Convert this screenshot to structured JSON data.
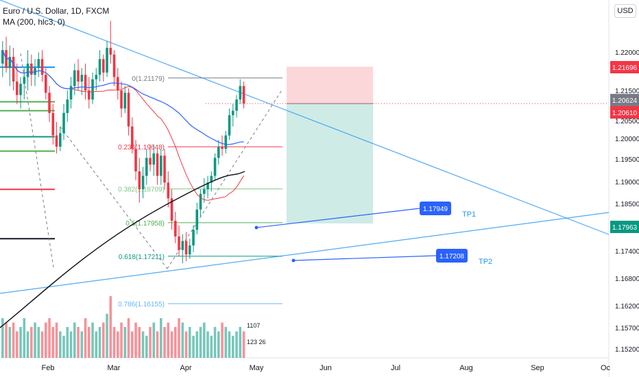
{
  "legend": {
    "symbol": "Euro / U.S. Dollar, 1D, FXCM",
    "indicator": "MA (200, hlc3, 0)"
  },
  "currency_button": "USD",
  "chart_data": {
    "type": "candlestick",
    "symbol": "EURUSD",
    "timeframe": "1D",
    "x_ticks": [
      "Feb",
      "Mar",
      "Apr",
      "May",
      "Jun",
      "Jul",
      "Aug",
      "Sep",
      "Oc"
    ],
    "y_ticks": [
      "1.22000",
      "1.21500",
      "1.20500",
      "1.20000",
      "1.19500",
      "1.19000",
      "1.18500",
      "1.17400",
      "1.16800",
      "1.16200",
      "1.15700",
      "1.15200"
    ],
    "ylim": [
      1.15,
      1.226
    ],
    "price_labels": [
      {
        "value": "1.21696",
        "color": "#f23645"
      },
      {
        "value": "1.20624",
        "color": "#787b86"
      },
      {
        "value": "1.20610",
        "color": "#f23645"
      },
      {
        "value": "1.17963",
        "color": "#089981"
      }
    ],
    "fibonacci": [
      {
        "label": "0(1.21179)",
        "value": 1.21179,
        "color": "#787b86"
      },
      {
        "label": "0.236(1.19648)",
        "value": 1.19648,
        "color": "#f23645"
      },
      {
        "label": "0.382(1.18709)",
        "value": 1.18709,
        "color": "#81c784"
      },
      {
        "label": "0.5(1.17958)",
        "value": 1.17958,
        "color": "#4caf50"
      },
      {
        "label": "0.618(1.17211)",
        "value": 1.17211,
        "color": "#089981"
      },
      {
        "label": "0.786(1.16155)",
        "value": 1.16155,
        "color": "#64b5f6"
      }
    ],
    "targets": [
      {
        "label": "TP1",
        "price": "1.17949"
      },
      {
        "label": "TP2",
        "price": "1.17208"
      }
    ],
    "trade": {
      "entry": 1.2061,
      "stop": 1.2143,
      "target": 1.1794
    },
    "volume_labels": [
      "1107",
      "123 26"
    ],
    "candles": [
      {
        "o": 1.215,
        "h": 1.22,
        "l": 1.212,
        "c": 1.218
      },
      {
        "o": 1.218,
        "h": 1.221,
        "l": 1.213,
        "c": 1.214
      },
      {
        "o": 1.214,
        "h": 1.219,
        "l": 1.21,
        "c": 1.2165
      },
      {
        "o": 1.2165,
        "h": 1.2185,
        "l": 1.209,
        "c": 1.211
      },
      {
        "o": 1.211,
        "h": 1.215,
        "l": 1.206,
        "c": 1.208
      },
      {
        "o": 1.208,
        "h": 1.212,
        "l": 1.205,
        "c": 1.2105
      },
      {
        "o": 1.2105,
        "h": 1.214,
        "l": 1.207,
        "c": 1.212
      },
      {
        "o": 1.212,
        "h": 1.218,
        "l": 1.209,
        "c": 1.215
      },
      {
        "o": 1.215,
        "h": 1.217,
        "l": 1.21,
        "c": 1.2125
      },
      {
        "o": 1.2125,
        "h": 1.216,
        "l": 1.21,
        "c": 1.214
      },
      {
        "o": 1.214,
        "h": 1.2175,
        "l": 1.212,
        "c": 1.216
      },
      {
        "o": 1.216,
        "h": 1.218,
        "l": 1.211,
        "c": 1.2125
      },
      {
        "o": 1.2125,
        "h": 1.214,
        "l": 1.207,
        "c": 1.2085
      },
      {
        "o": 1.2085,
        "h": 1.21,
        "l": 1.202,
        "c": 1.204
      },
      {
        "o": 1.204,
        "h": 1.206,
        "l": 1.197,
        "c": 1.199
      },
      {
        "o": 1.199,
        "h": 1.202,
        "l": 1.195,
        "c": 1.1965
      },
      {
        "o": 1.1965,
        "h": 1.201,
        "l": 1.1955,
        "c": 1.1995
      },
      {
        "o": 1.1995,
        "h": 1.206,
        "l": 1.198,
        "c": 1.204
      },
      {
        "o": 1.204,
        "h": 1.209,
        "l": 1.202,
        "c": 1.207
      },
      {
        "o": 1.207,
        "h": 1.212,
        "l": 1.205,
        "c": 1.21
      },
      {
        "o": 1.21,
        "h": 1.215,
        "l": 1.208,
        "c": 1.2135
      },
      {
        "o": 1.2135,
        "h": 1.216,
        "l": 1.209,
        "c": 1.211
      },
      {
        "o": 1.211,
        "h": 1.214,
        "l": 1.208,
        "c": 1.2125
      },
      {
        "o": 1.2125,
        "h": 1.215,
        "l": 1.207,
        "c": 1.209
      },
      {
        "o": 1.209,
        "h": 1.212,
        "l": 1.205,
        "c": 1.207
      },
      {
        "o": 1.207,
        "h": 1.213,
        "l": 1.206,
        "c": 1.2115
      },
      {
        "o": 1.2115,
        "h": 1.214,
        "l": 1.209,
        "c": 1.2125
      },
      {
        "o": 1.2125,
        "h": 1.218,
        "l": 1.211,
        "c": 1.216
      },
      {
        "o": 1.216,
        "h": 1.217,
        "l": 1.211,
        "c": 1.213
      },
      {
        "o": 1.213,
        "h": 1.22,
        "l": 1.212,
        "c": 1.2185
      },
      {
        "o": 1.2185,
        "h": 1.2245,
        "l": 1.215,
        "c": 1.217
      },
      {
        "o": 1.217,
        "h": 1.218,
        "l": 1.21,
        "c": 1.212
      },
      {
        "o": 1.212,
        "h": 1.214,
        "l": 1.207,
        "c": 1.209
      },
      {
        "o": 1.209,
        "h": 1.211,
        "l": 1.203,
        "c": 1.205
      },
      {
        "o": 1.205,
        "h": 1.21,
        "l": 1.204,
        "c": 1.2085
      },
      {
        "o": 1.2085,
        "h": 1.2095,
        "l": 1.199,
        "c": 1.201
      },
      {
        "o": 1.201,
        "h": 1.203,
        "l": 1.195,
        "c": 1.196
      },
      {
        "o": 1.196,
        "h": 1.198,
        "l": 1.189,
        "c": 1.191
      },
      {
        "o": 1.191,
        "h": 1.194,
        "l": 1.184,
        "c": 1.187
      },
      {
        "o": 1.187,
        "h": 1.192,
        "l": 1.185,
        "c": 1.19
      },
      {
        "o": 1.19,
        "h": 1.196,
        "l": 1.188,
        "c": 1.194
      },
      {
        "o": 1.194,
        "h": 1.197,
        "l": 1.191,
        "c": 1.1925
      },
      {
        "o": 1.1925,
        "h": 1.197,
        "l": 1.19,
        "c": 1.195
      },
      {
        "o": 1.195,
        "h": 1.196,
        "l": 1.188,
        "c": 1.19
      },
      {
        "o": 1.19,
        "h": 1.196,
        "l": 1.188,
        "c": 1.1945
      },
      {
        "o": 1.1945,
        "h": 1.196,
        "l": 1.187,
        "c": 1.1885
      },
      {
        "o": 1.1885,
        "h": 1.191,
        "l": 1.183,
        "c": 1.185
      },
      {
        "o": 1.185,
        "h": 1.187,
        "l": 1.178,
        "c": 1.18
      },
      {
        "o": 1.18,
        "h": 1.182,
        "l": 1.175,
        "c": 1.1765
      },
      {
        "o": 1.1765,
        "h": 1.179,
        "l": 1.172,
        "c": 1.1735
      },
      {
        "o": 1.1735,
        "h": 1.177,
        "l": 1.1705,
        "c": 1.1755
      },
      {
        "o": 1.1755,
        "h": 1.1775,
        "l": 1.171,
        "c": 1.1725
      },
      {
        "o": 1.1725,
        "h": 1.176,
        "l": 1.1715,
        "c": 1.1745
      },
      {
        "o": 1.1745,
        "h": 1.179,
        "l": 1.173,
        "c": 1.178
      },
      {
        "o": 1.178,
        "h": 1.184,
        "l": 1.177,
        "c": 1.1825
      },
      {
        "o": 1.1825,
        "h": 1.187,
        "l": 1.181,
        "c": 1.186
      },
      {
        "o": 1.186,
        "h": 1.1895,
        "l": 1.184,
        "c": 1.187
      },
      {
        "o": 1.187,
        "h": 1.19,
        "l": 1.185,
        "c": 1.1885
      },
      {
        "o": 1.1885,
        "h": 1.191,
        "l": 1.1865,
        "c": 1.19
      },
      {
        "o": 1.19,
        "h": 1.195,
        "l": 1.189,
        "c": 1.194
      },
      {
        "o": 1.194,
        "h": 1.198,
        "l": 1.1925,
        "c": 1.1965
      },
      {
        "o": 1.1965,
        "h": 1.199,
        "l": 1.1945,
        "c": 1.196
      },
      {
        "o": 1.196,
        "h": 1.2,
        "l": 1.195,
        "c": 1.199
      },
      {
        "o": 1.199,
        "h": 1.205,
        "l": 1.198,
        "c": 1.2035
      },
      {
        "o": 1.2035,
        "h": 1.206,
        "l": 1.201,
        "c": 1.2045
      },
      {
        "o": 1.2045,
        "h": 1.208,
        "l": 1.203,
        "c": 1.207
      },
      {
        "o": 1.207,
        "h": 1.2115,
        "l": 1.206,
        "c": 1.21
      },
      {
        "o": 1.21,
        "h": 1.211,
        "l": 1.205,
        "c": 1.2061
      }
    ],
    "volumes": [
      9,
      8,
      7,
      8,
      6,
      7,
      9,
      6,
      7,
      8,
      7,
      6,
      8,
      9,
      7,
      8,
      6,
      5,
      7,
      6,
      8,
      7,
      6,
      9,
      7,
      8,
      6,
      7,
      8,
      10,
      14,
      7,
      6,
      8,
      7,
      9,
      6,
      8,
      7,
      6,
      5,
      7,
      8,
      6,
      9,
      7,
      8,
      6,
      7,
      9,
      8,
      6,
      7,
      5,
      6,
      7,
      8,
      6,
      5,
      7,
      6,
      8,
      7,
      6,
      5,
      6,
      7,
      6
    ]
  }
}
